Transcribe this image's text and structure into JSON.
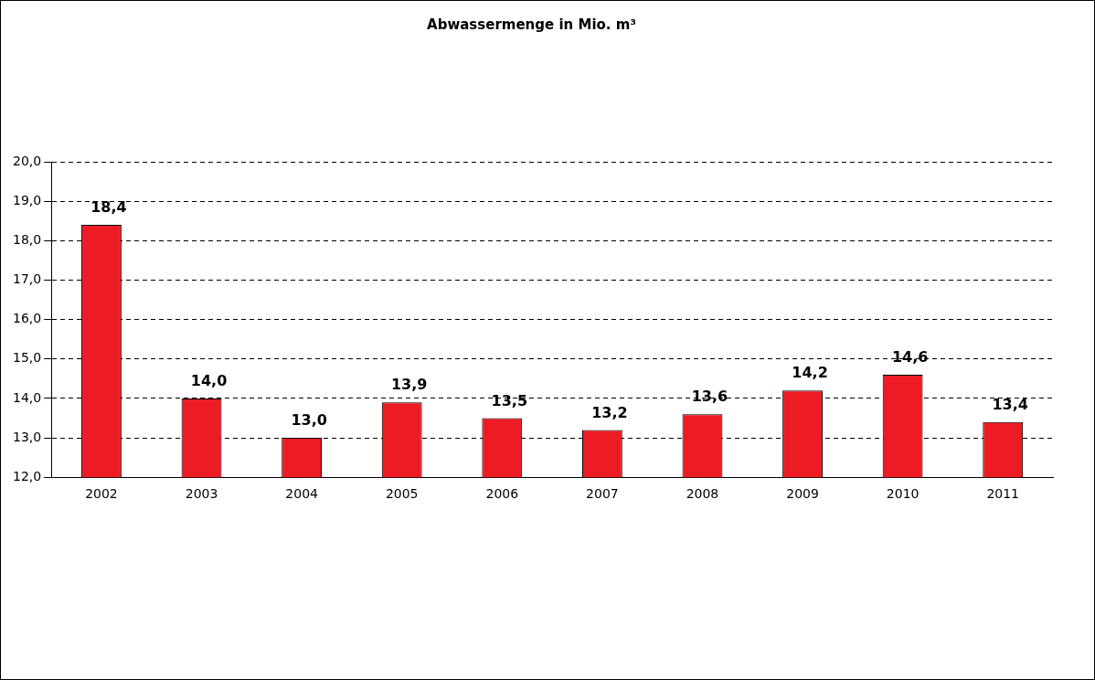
{
  "chart_data": {
    "type": "bar",
    "title": "Abwassermenge in Mio. m³",
    "categories": [
      "2002",
      "2003",
      "2004",
      "2005",
      "2006",
      "2007",
      "2008",
      "2009",
      "2010",
      "2011"
    ],
    "values": [
      18.4,
      14.0,
      13.0,
      13.9,
      13.5,
      13.2,
      13.6,
      14.2,
      14.6,
      13.4
    ],
    "value_labels": [
      "18,4",
      "14,0",
      "13,0",
      "13,9",
      "13,5",
      "13,2",
      "13,6",
      "14,2",
      "14,6",
      "13,4"
    ],
    "color": "#ed1c24",
    "ylim": [
      12,
      20
    ],
    "yticks": [
      {
        "value": 12,
        "label": "12,0"
      },
      {
        "value": 13,
        "label": "13,0"
      },
      {
        "value": 14,
        "label": "14,0"
      },
      {
        "value": 15,
        "label": "15,0"
      },
      {
        "value": 16,
        "label": "16,0"
      },
      {
        "value": 17,
        "label": "17,0"
      },
      {
        "value": 18,
        "label": "18,0"
      },
      {
        "value": 19,
        "label": "19,0"
      },
      {
        "value": 20,
        "label": "20,0"
      }
    ],
    "grid": "y",
    "legend": false
  }
}
